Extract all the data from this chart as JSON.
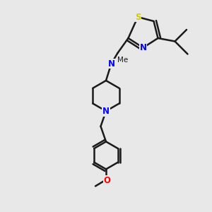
{
  "bg_color": "#e8e8e8",
  "bond_color": "#1a1a1a",
  "N_color": "#0000ff",
  "S_color": "#cccc00",
  "O_color": "#ff0000",
  "C_color": "#1a1a1a",
  "line_width": 1.8,
  "fig_size": [
    3.0,
    3.0
  ],
  "dpi": 100,
  "xlim": [
    0,
    10
  ],
  "ylim": [
    0,
    10
  ]
}
